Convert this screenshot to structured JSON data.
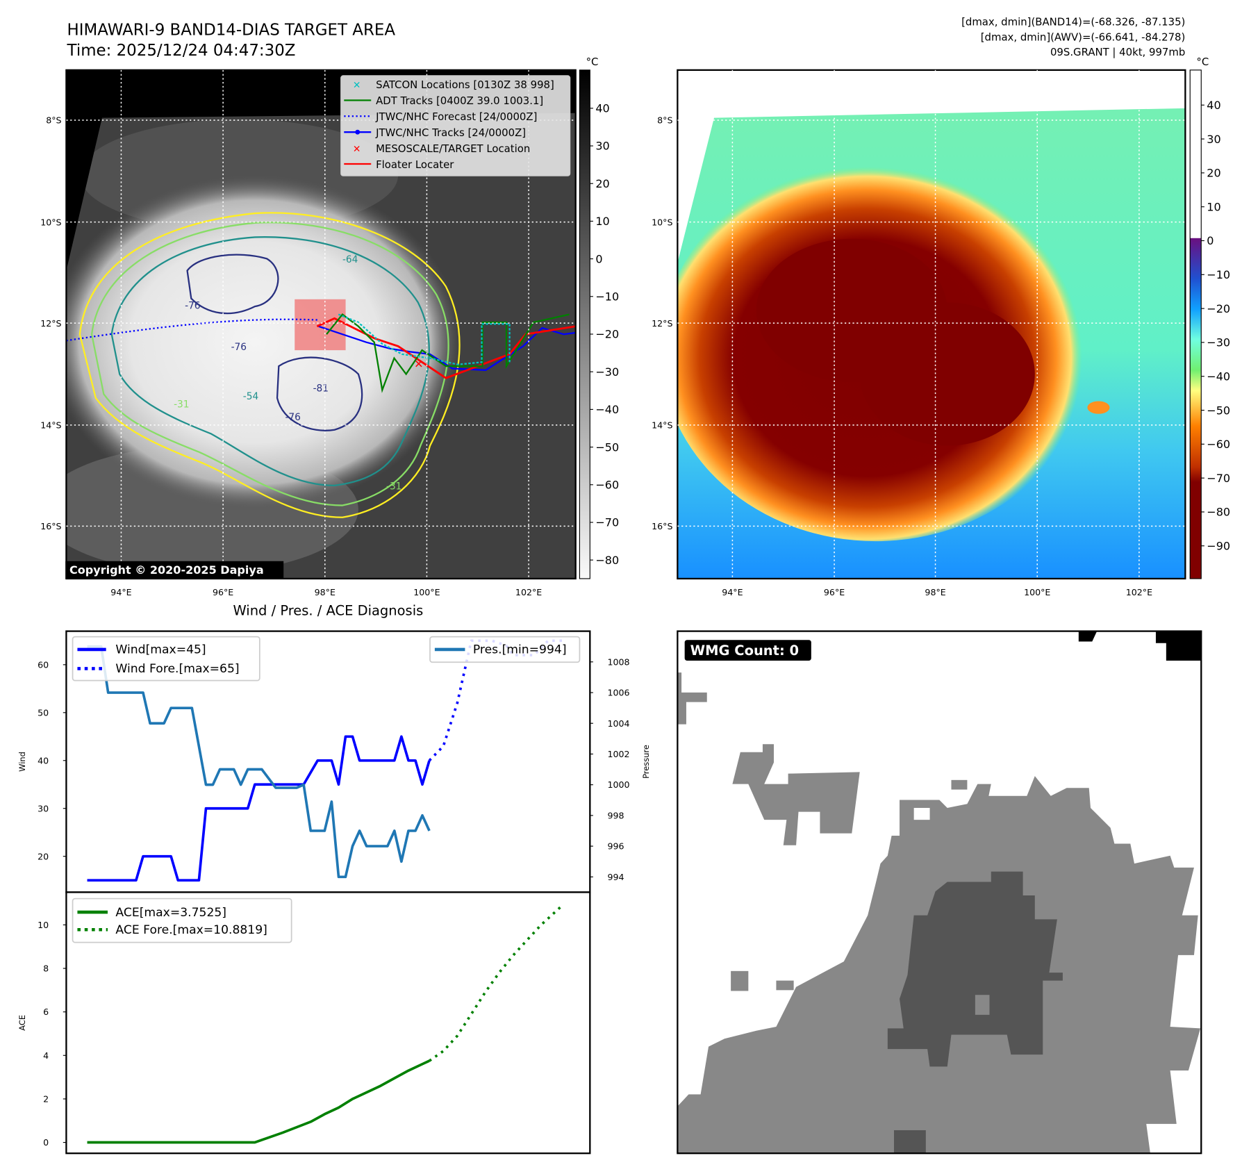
{
  "header": {
    "title_line1": "HIMAWARI-9 BAND14-DIAS TARGET AREA",
    "title_line2": "Time: 2025/12/24 04:47:30Z",
    "info_line1": "[dmax, dmin](BAND14)=(-68.326, -87.135)",
    "info_line2": "[dmax, dmin](AWV)=(-66.641, -84.278)",
    "info_line3": "09S.GRANT | 40kt, 997mb"
  },
  "map_ir": {
    "lat_labels": [
      "8°S",
      "10°S",
      "12°S",
      "14°S",
      "16°S"
    ],
    "lon_labels": [
      "94°E",
      "96°E",
      "98°E",
      "100°E",
      "102°E"
    ],
    "contour_labels": [
      "-76",
      "-76",
      "-81",
      "-76",
      "-64",
      "-54",
      "-31",
      "-31"
    ],
    "legend": [
      {
        "label": "SATCON Locations [0130Z 38 998]",
        "color": "#00c0c0",
        "icon": "x-marker-icon"
      },
      {
        "label": "ADT Tracks [0400Z 39.0 1003.1]",
        "color": "#008000",
        "icon": "solid-line-icon"
      },
      {
        "label": "JTWC/NHC Forecast [24/0000Z]",
        "color": "#0000ff",
        "icon": "dotted-line-icon"
      },
      {
        "label": "JTWC/NHC Tracks [24/0000Z]",
        "color": "#0000ff",
        "icon": "line-dot-icon"
      },
      {
        "label": "MESOSCALE/TARGET Location",
        "color": "#ff0000",
        "icon": "x-marker-icon"
      },
      {
        "label": "Floater Locater",
        "color": "#ff0000",
        "icon": "solid-line-icon"
      }
    ],
    "copyright": "Copyright © 2020-2025 Dapiya",
    "colorbar": {
      "unit": "°C",
      "ticks": [
        "40",
        "30",
        "20",
        "10",
        "0",
        "−10",
        "−20",
        "−30",
        "−40",
        "−50",
        "−60",
        "−70",
        "−80"
      ]
    }
  },
  "map_color": {
    "lat_labels": [
      "8°S",
      "10°S",
      "12°S",
      "14°S",
      "16°S"
    ],
    "lon_labels": [
      "94°E",
      "96°E",
      "98°E",
      "100°E",
      "102°E"
    ],
    "colorbar": {
      "unit": "°C",
      "ticks": [
        "40",
        "30",
        "20",
        "10",
        "0",
        "−10",
        "−20",
        "−30",
        "−40",
        "−50",
        "−60",
        "−70",
        "−80",
        "−90"
      ]
    }
  },
  "wmg": {
    "badge": "WMG Count: 0"
  },
  "chart_data": [
    {
      "type": "line",
      "title": "Wind / Pres. / ACE Diagnosis",
      "ylabel": "Wind",
      "y2label": "Pressure",
      "ylim": [
        12.5,
        67
      ],
      "y2lim": [
        993,
        1010
      ],
      "xlim": [
        -3,
        72
      ],
      "yticks": [
        "20",
        "30",
        "40",
        "50",
        "60"
      ],
      "y2ticks": [
        "994",
        "996",
        "998",
        "1000",
        "1002",
        "1004",
        "1006",
        "1008"
      ],
      "series": [
        {
          "name": "Wind[max=45]",
          "axis": "left",
          "style": "solid",
          "color": "#0000ff",
          "points": [
            [
              0,
              15
            ],
            [
              7,
              15
            ],
            [
              8,
              20
            ],
            [
              12,
              20
            ],
            [
              13,
              15
            ],
            [
              16,
              15
            ],
            [
              17,
              30
            ],
            [
              23,
              30
            ],
            [
              24,
              35
            ],
            [
              31,
              35
            ],
            [
              33,
              40
            ],
            [
              35,
              40
            ],
            [
              36,
              35
            ],
            [
              37,
              45
            ],
            [
              38,
              45
            ],
            [
              39,
              40
            ],
            [
              44,
              40
            ],
            [
              45,
              45
            ],
            [
              46,
              40
            ],
            [
              47,
              40
            ],
            [
              48,
              35
            ],
            [
              49,
              40
            ]
          ]
        },
        {
          "name": "Wind Fore.[max=65]",
          "axis": "left",
          "style": "dotted",
          "color": "#0000ff",
          "points": [
            [
              49,
              40
            ],
            [
              51,
              43
            ],
            [
              53,
              52
            ],
            [
              55,
              65
            ],
            [
              58,
              65
            ],
            [
              60,
              64
            ],
            [
              61,
              62
            ],
            [
              64,
              62
            ],
            [
              66,
              65
            ],
            [
              68,
              65
            ]
          ]
        },
        {
          "name": "Pres.[min=994]",
          "axis": "right",
          "style": "solid",
          "color": "#1f77b4",
          "points": [
            [
              0,
              1009
            ],
            [
              2,
              1009
            ],
            [
              3,
              1006
            ],
            [
              8,
              1006
            ],
            [
              9,
              1004
            ],
            [
              11,
              1004
            ],
            [
              12,
              1005
            ],
            [
              15,
              1005
            ],
            [
              16,
              1002.5
            ],
            [
              17,
              1000
            ],
            [
              18,
              1000
            ],
            [
              19,
              1001
            ],
            [
              21,
              1001
            ],
            [
              22,
              1000
            ],
            [
              23,
              1001
            ],
            [
              25,
              1001
            ],
            [
              27,
              999.8
            ],
            [
              30,
              999.8
            ],
            [
              31,
              1000
            ],
            [
              32,
              997
            ],
            [
              34,
              997
            ],
            [
              35,
              998.9
            ],
            [
              36,
              994
            ],
            [
              37,
              994
            ],
            [
              38,
              996
            ],
            [
              39,
              997
            ],
            [
              40,
              996
            ],
            [
              43,
              996
            ],
            [
              44,
              997
            ],
            [
              45,
              995
            ],
            [
              46,
              997
            ],
            [
              47,
              997
            ],
            [
              48,
              998
            ],
            [
              49,
              997
            ]
          ]
        }
      ]
    },
    {
      "type": "line",
      "ylabel": "ACE",
      "ylim": [
        -0.5,
        11.5
      ],
      "xlim": [
        -3,
        72
      ],
      "yticks": [
        "0",
        "2",
        "4",
        "6",
        "8",
        "10"
      ],
      "series": [
        {
          "name": "ACE[max=3.7525]",
          "style": "solid",
          "color": "#008000",
          "points": [
            [
              0,
              0
            ],
            [
              24,
              0
            ],
            [
              28,
              0.45
            ],
            [
              32,
              0.95
            ],
            [
              34,
              1.3
            ],
            [
              36,
              1.6
            ],
            [
              38,
              2.0
            ],
            [
              42,
              2.6
            ],
            [
              44,
              2.95
            ],
            [
              46,
              3.3
            ],
            [
              48,
              3.6
            ],
            [
              49,
              3.75
            ]
          ]
        },
        {
          "name": "ACE Fore.[max=10.8819]",
          "style": "dotted",
          "color": "#008000",
          "points": [
            [
              49,
              3.75
            ],
            [
              51,
              4.2
            ],
            [
              53,
              4.9
            ],
            [
              55,
              5.9
            ],
            [
              57,
              6.9
            ],
            [
              59,
              7.8
            ],
            [
              61,
              8.6
            ],
            [
              63,
              9.3
            ],
            [
              65,
              10.0
            ],
            [
              68,
              10.88
            ]
          ]
        }
      ]
    }
  ]
}
